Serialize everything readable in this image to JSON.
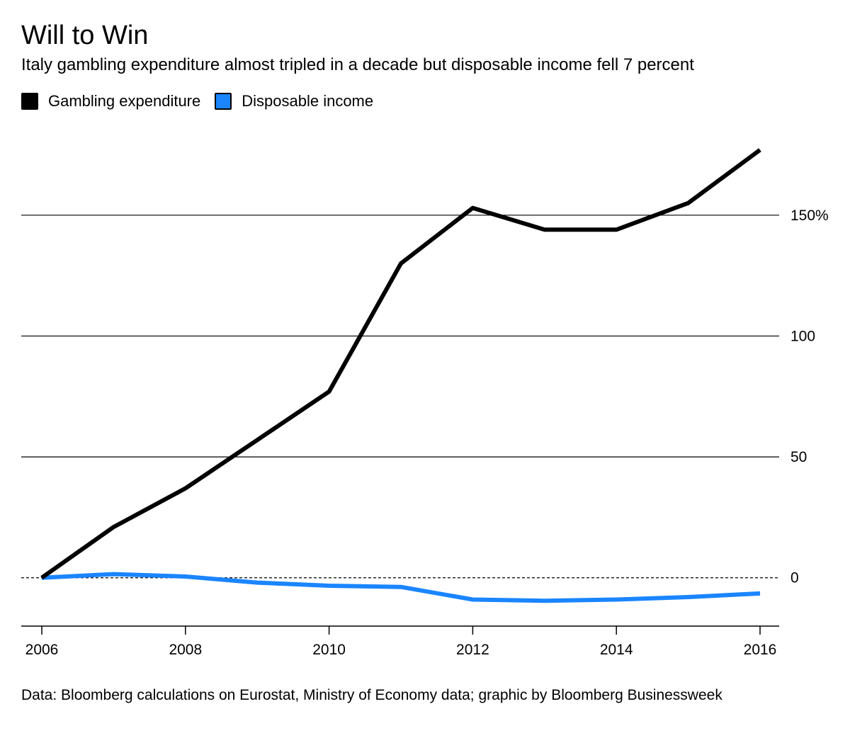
{
  "title": "Will to Win",
  "subtitle": "Italy gambling expenditure almost tripled in a decade but disposable income fell 7 percent",
  "legend": [
    {
      "label": "Gambling expenditure",
      "color": "#000000"
    },
    {
      "label": "Disposable income",
      "color": "#1a85ff"
    }
  ],
  "source": "Data: Bloomberg calculations on Eurostat, Ministry of Economy data; graphic by Bloomberg Businessweek",
  "chart_data": {
    "type": "line",
    "x": [
      2006,
      2007,
      2008,
      2009,
      2010,
      2011,
      2012,
      2013,
      2014,
      2015,
      2016
    ],
    "series": [
      {
        "name": "Gambling expenditure",
        "color": "#000000",
        "values": [
          0,
          21,
          37,
          57,
          77,
          130,
          153,
          144,
          144,
          155,
          177
        ]
      },
      {
        "name": "Disposable income",
        "color": "#1a85ff",
        "values": [
          0,
          1.5,
          0.5,
          -2,
          -3.3,
          -3.8,
          -9,
          -9.5,
          -9,
          -8,
          -6.5
        ]
      }
    ],
    "ylim": [
      -20,
      180
    ],
    "xlim": [
      2006,
      2016
    ],
    "y_ticks": [
      {
        "value": 0,
        "label": "0"
      },
      {
        "value": 50,
        "label": "50"
      },
      {
        "value": 100,
        "label": "100"
      },
      {
        "value": 150,
        "label": "150%"
      }
    ],
    "x_ticks": [
      {
        "value": 2006,
        "label": "2006"
      },
      {
        "value": 2008,
        "label": "2008"
      },
      {
        "value": 2010,
        "label": "2010"
      },
      {
        "value": 2012,
        "label": "2012"
      },
      {
        "value": 2014,
        "label": "2014"
      },
      {
        "value": 2016,
        "label": "2016"
      }
    ],
    "y_axis_position": "right",
    "grid": true,
    "zero_line": "dashed",
    "legend_position": "top-left"
  }
}
